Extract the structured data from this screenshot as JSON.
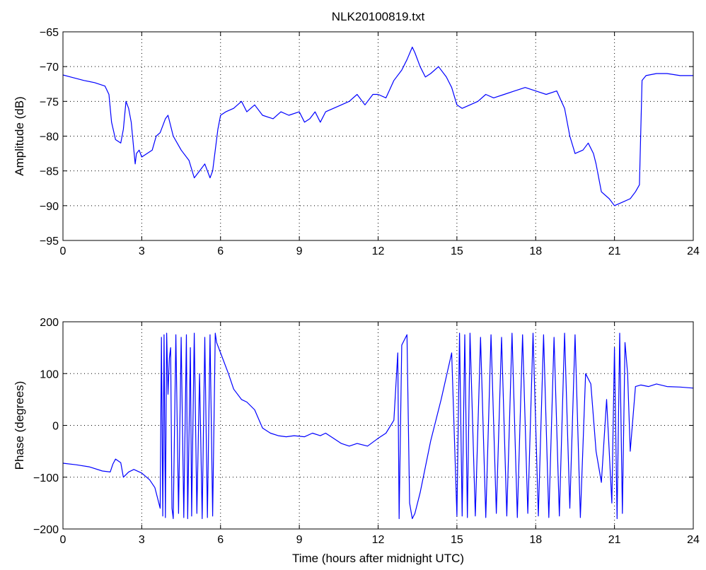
{
  "chart_data": [
    {
      "type": "line",
      "title": "NLK20100819.txt",
      "xlabel": "",
      "ylabel": "Amplitude (dB)",
      "xlim": [
        0,
        24
      ],
      "ylim": [
        -95,
        -65
      ],
      "xticks": [
        0,
        3,
        6,
        9,
        12,
        15,
        18,
        21,
        24
      ],
      "yticks": [
        -95,
        -90,
        -85,
        -80,
        -75,
        -70,
        -65
      ],
      "xtick_labels": [
        "0",
        "3",
        "6",
        "9",
        "12",
        "15",
        "18",
        "21",
        "24"
      ],
      "ytick_labels": [
        "−95",
        "−90",
        "−85",
        "−80",
        "−75",
        "−70",
        "−65"
      ],
      "grid": true,
      "color": "#0000ff",
      "series": [
        {
          "x": [
            0,
            0.3,
            0.8,
            1.2,
            1.6,
            1.75,
            1.85,
            2.0,
            2.2,
            2.3,
            2.4,
            2.5,
            2.6,
            2.7,
            2.75,
            2.8,
            2.9,
            3.0,
            3.2,
            3.4,
            3.55,
            3.7,
            3.9,
            4.0,
            4.2,
            4.5,
            4.8,
            5.0,
            5.2,
            5.4,
            5.6,
            5.7,
            5.9,
            6.0,
            6.2,
            6.5,
            6.8,
            7.0,
            7.3,
            7.6,
            8.0,
            8.3,
            8.6,
            9.0,
            9.2,
            9.4,
            9.6,
            9.8,
            10.0,
            10.3,
            10.6,
            10.9,
            11.2,
            11.5,
            11.8,
            12.0,
            12.3,
            12.6,
            12.9,
            13.1,
            13.3,
            13.4,
            13.6,
            13.8,
            14.0,
            14.3,
            14.6,
            14.8,
            15.0,
            15.2,
            15.5,
            15.8,
            16.1,
            16.4,
            16.8,
            17.2,
            17.6,
            18.0,
            18.4,
            18.8,
            19.1,
            19.3,
            19.5,
            19.8,
            20.0,
            20.2,
            20.3,
            20.5,
            20.8,
            21.0,
            21.3,
            21.6,
            21.8,
            21.95,
            22.05,
            22.2,
            22.6,
            23.0,
            23.5,
            24.0
          ],
          "y": [
            -71.2,
            -71.5,
            -72.0,
            -72.3,
            -72.8,
            -74.0,
            -78.0,
            -80.5,
            -81.0,
            -79.0,
            -75.0,
            -76.0,
            -78.0,
            -82.0,
            -84.0,
            -82.5,
            -82.0,
            -83.0,
            -82.5,
            -82.0,
            -80.0,
            -79.5,
            -77.5,
            -77.0,
            -80.0,
            -82.0,
            -83.5,
            -86.0,
            -85.0,
            -84.0,
            -86.0,
            -85.0,
            -79.0,
            -77.0,
            -76.5,
            -76.0,
            -75.0,
            -76.5,
            -75.5,
            -77.0,
            -77.5,
            -76.5,
            -77.0,
            -76.5,
            -78.0,
            -77.5,
            -76.5,
            -78.0,
            -76.5,
            -76.0,
            -75.5,
            -75.0,
            -74.0,
            -75.5,
            -74.0,
            -74.0,
            -74.5,
            -72.0,
            -70.5,
            -69.0,
            -67.2,
            -68.0,
            -70.0,
            -71.5,
            -71.0,
            -70.0,
            -71.5,
            -73.0,
            -75.5,
            -76.0,
            -75.5,
            -75.0,
            -74.0,
            -74.5,
            -74.0,
            -73.5,
            -73.0,
            -73.5,
            -74.0,
            -73.5,
            -76.0,
            -80.0,
            -82.5,
            -82.0,
            -81.0,
            -82.5,
            -84.0,
            -88.0,
            -89.0,
            -90.0,
            -89.5,
            -89.0,
            -88.0,
            -87.0,
            -72.0,
            -71.3,
            -71.0,
            -71.0,
            -71.3,
            -71.3
          ]
        }
      ]
    },
    {
      "type": "line",
      "title": "",
      "xlabel": "Time (hours after midnight UTC)",
      "ylabel": "Phase (degrees)",
      "xlim": [
        0,
        24
      ],
      "ylim": [
        -200,
        200
      ],
      "xticks": [
        0,
        3,
        6,
        9,
        12,
        15,
        18,
        21,
        24
      ],
      "yticks": [
        -200,
        -100,
        0,
        100,
        200
      ],
      "xtick_labels": [
        "0",
        "3",
        "6",
        "9",
        "12",
        "15",
        "18",
        "21",
        "24"
      ],
      "ytick_labels": [
        "−200",
        "−100",
        "0",
        "100",
        "200"
      ],
      "grid": true,
      "color": "#0000ff",
      "series": [
        {
          "x": [
            0,
            0.5,
            1.0,
            1.5,
            1.8,
            1.9,
            2.0,
            2.2,
            2.3,
            2.5,
            2.7,
            3.0,
            3.3,
            3.5,
            3.7,
            3.75,
            3.8,
            3.85,
            3.9,
            3.95,
            4.0,
            4.05,
            4.1,
            4.15,
            4.2,
            4.3,
            4.4,
            4.5,
            4.6,
            4.7,
            4.75,
            4.85,
            4.9,
            5.0,
            5.1,
            5.2,
            5.3,
            5.4,
            5.5,
            5.6,
            5.7,
            5.8,
            5.85,
            6.0,
            6.3,
            6.5,
            6.8,
            7.0,
            7.3,
            7.6,
            7.9,
            8.2,
            8.5,
            8.8,
            9.2,
            9.5,
            9.8,
            10.0,
            10.3,
            10.6,
            10.9,
            11.2,
            11.6,
            12.0,
            12.3,
            12.6,
            12.75,
            12.8,
            12.9,
            13.0,
            13.1,
            13.2,
            13.3,
            13.4,
            13.6,
            14.0,
            14.4,
            14.8,
            15.0,
            15.1,
            15.2,
            15.3,
            15.4,
            15.5,
            15.7,
            15.9,
            16.1,
            16.3,
            16.5,
            16.7,
            16.9,
            17.1,
            17.3,
            17.5,
            17.7,
            17.9,
            18.1,
            18.3,
            18.5,
            18.7,
            18.9,
            19.1,
            19.3,
            19.5,
            19.7,
            19.9,
            20.1,
            20.3,
            20.5,
            20.7,
            20.9,
            21.0,
            21.1,
            21.2,
            21.3,
            21.4,
            21.5,
            21.6,
            21.8,
            22.0,
            22.3,
            22.6,
            23.0,
            23.5,
            24.0
          ],
          "y": [
            -73,
            -76,
            -80,
            -88,
            -90,
            -75,
            -65,
            -72,
            -100,
            -90,
            -85,
            -92,
            -105,
            -120,
            -160,
            170,
            -175,
            175,
            -178,
            178,
            60,
            130,
            150,
            -160,
            -180,
            175,
            -170,
            170,
            -178,
            175,
            -180,
            150,
            -175,
            178,
            -170,
            100,
            -180,
            170,
            -178,
            175,
            -175,
            178,
            160,
            140,
            100,
            70,
            50,
            45,
            30,
            -5,
            -15,
            -20,
            -22,
            -20,
            -22,
            -15,
            -20,
            -15,
            -25,
            -35,
            -40,
            -35,
            -40,
            -25,
            -15,
            10,
            140,
            -180,
            155,
            165,
            175,
            -150,
            -180,
            -170,
            -130,
            -30,
            50,
            140,
            -175,
            178,
            -175,
            175,
            -178,
            178,
            -175,
            170,
            -178,
            175,
            -170,
            170,
            -175,
            178,
            -178,
            175,
            -170,
            178,
            -175,
            175,
            -178,
            170,
            -175,
            178,
            -160,
            175,
            -178,
            100,
            80,
            -50,
            -110,
            50,
            -150,
            150,
            -180,
            178,
            -170,
            160,
            100,
            -50,
            75,
            78,
            75,
            80,
            75,
            74,
            72
          ]
        }
      ]
    }
  ]
}
